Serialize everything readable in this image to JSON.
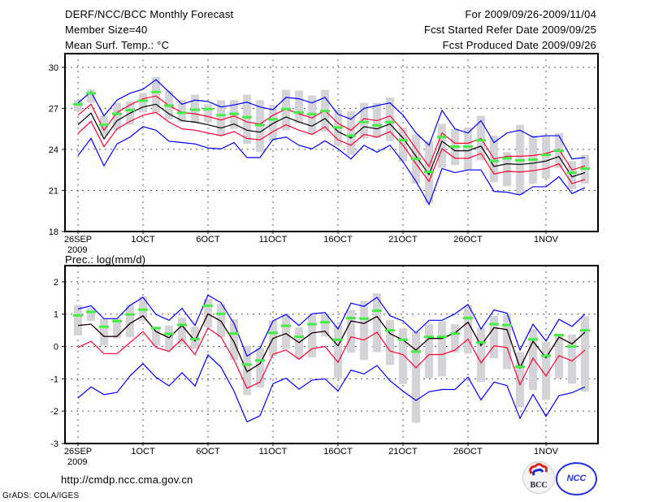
{
  "header": {
    "title": "DERF/NCC/BCC Monthly Forecast",
    "member_size": "Member Size=40",
    "variable": "Mean Surf. Temp.: °C",
    "period": "For 2009/09/26-2009/11/04",
    "started": "Fcst Started Refer Date 2009/09/25",
    "produced": "Fcst Produced Date 2009/09/26"
  },
  "footer": {
    "url": "http://cmdp.ncc.cma.gov.cn",
    "credit": "GrADS: COLA/IGES",
    "logos": [
      "BCC",
      "NCC"
    ]
  },
  "colors": {
    "mean": "#000000",
    "red": "#ff0030",
    "blue": "#0000ff",
    "green": "#44ee44",
    "bar": "#d4d4d8"
  },
  "chart_data": [
    {
      "type": "line",
      "title": "Mean Surf. Temp.: °C",
      "ylim": [
        18,
        31
      ],
      "yticks": [
        18,
        21,
        24,
        27,
        30
      ],
      "ytick_labels": [
        "18",
        "21",
        "24",
        "27",
        "30"
      ],
      "xtick_days": [
        0,
        5,
        10,
        15,
        20,
        25,
        30,
        36
      ],
      "xtick_labels": [
        "26SEP",
        "1OCT",
        "6OCT",
        "11OCT",
        "16OCT",
        "21OCT",
        "26OCT",
        "1NOV"
      ],
      "xtick_sub": "2009",
      "grid": true,
      "mean": [
        25.8,
        26.65,
        24.77,
        26.1,
        26.65,
        27.1,
        27.3,
        26.6,
        26.1,
        26.0,
        25.8,
        25.56,
        25.86,
        25.4,
        25.26,
        25.9,
        26.37,
        26.0,
        25.7,
        26.26,
        25.3,
        24.83,
        25.66,
        25.5,
        25.86,
        24.83,
        23.5,
        22.16,
        24.6,
        23.9,
        23.9,
        24.24,
        22.75,
        22.95,
        22.9,
        22.99,
        23.15,
        23.48,
        22.0,
        22.3
      ],
      "red_upper": [
        26.5,
        27.3,
        25.4,
        26.7,
        27.25,
        27.7,
        27.9,
        27.2,
        26.7,
        26.6,
        26.4,
        26.15,
        26.45,
        26.0,
        25.85,
        26.5,
        26.95,
        26.6,
        26.3,
        26.85,
        25.9,
        25.4,
        26.25,
        26.1,
        26.45,
        25.4,
        24.05,
        22.75,
        25.2,
        24.45,
        24.45,
        24.8,
        23.3,
        23.5,
        23.5,
        23.55,
        23.7,
        24.0,
        22.5,
        22.8
      ],
      "red_lower": [
        25.17,
        26.05,
        24.2,
        25.5,
        26.05,
        26.5,
        26.7,
        26.0,
        25.5,
        25.4,
        25.2,
        25.0,
        25.3,
        24.8,
        24.7,
        25.3,
        25.8,
        25.4,
        25.1,
        25.65,
        24.7,
        24.3,
        25.1,
        24.9,
        25.3,
        24.3,
        22.95,
        21.66,
        24.05,
        23.35,
        23.35,
        23.7,
        22.2,
        22.4,
        22.35,
        22.45,
        22.6,
        22.95,
        21.5,
        21.8
      ],
      "blue_upper": [
        27.4,
        28.2,
        26.45,
        27.6,
        28.1,
        28.4,
        29.1,
        28.2,
        27.3,
        27.6,
        27.5,
        27.1,
        27.25,
        27.45,
        27.1,
        26.9,
        27.8,
        27.7,
        27.4,
        27.8,
        26.57,
        26.2,
        27.0,
        27.2,
        27.4,
        26.5,
        25.2,
        24.3,
        26.85,
        25.5,
        25.2,
        26.1,
        24.5,
        25.2,
        25.4,
        24.9,
        25.0,
        25.0,
        23.3,
        23.4
      ],
      "blue_lower": [
        23.55,
        24.8,
        22.8,
        24.4,
        24.9,
        25.66,
        25.4,
        24.6,
        24.5,
        24.4,
        24.1,
        24.04,
        24.5,
        23.4,
        23.4,
        24.73,
        24.9,
        24.3,
        24.04,
        24.63,
        24.04,
        23.3,
        24.3,
        23.8,
        24.3,
        23.1,
        21.66,
        19.98,
        22.6,
        22.3,
        22.5,
        22.5,
        20.93,
        20.87,
        20.67,
        21.27,
        21.27,
        22.0,
        20.77,
        21.2
      ],
      "green": [
        27.3,
        28.1,
        25.8,
        26.6,
        26.87,
        27.56,
        28.2,
        27.2,
        26.67,
        26.9,
        26.95,
        26.5,
        26.6,
        26.35,
        25.78,
        26.2,
        26.95,
        26.7,
        26.57,
        26.8,
        25.6,
        25.0,
        26.0,
        25.76,
        26.0,
        24.67,
        23.3,
        22.35,
        24.9,
        24.2,
        24.2,
        24.67,
        23.15,
        23.35,
        23.2,
        23.25,
        23.6,
        23.9,
        22.3,
        22.6
      ],
      "bar_high": [
        27.6,
        28.4,
        26.45,
        27.4,
        27.5,
        28.1,
        29.3,
        28.3,
        27.6,
        28.0,
        27.3,
        27.6,
        27.6,
        28.0,
        27.6,
        27.25,
        28.35,
        28.3,
        27.94,
        28.35,
        26.9,
        26.8,
        27.4,
        27.4,
        27.8,
        25.6,
        25.07,
        24.6,
        25.86,
        25.5,
        25.6,
        26.45,
        25.0,
        23.8,
        25.8,
        25.0,
        25.0,
        25.2,
        23.15,
        23.6
      ],
      "bar_low": [
        26.8,
        27.4,
        25.0,
        25.4,
        25.8,
        26.7,
        26.7,
        26.2,
        26.0,
        25.9,
        26.0,
        25.0,
        25.5,
        24.4,
        23.8,
        24.6,
        25.4,
        25.9,
        25.07,
        25.3,
        24.3,
        23.6,
        24.8,
        24.83,
        24.6,
        23.1,
        21.5,
        20.1,
        22.65,
        22.85,
        22.5,
        23.2,
        21.6,
        21.3,
        20.67,
        21.5,
        21.86,
        22.65,
        21.1,
        21.5
      ]
    },
    {
      "type": "line",
      "title": "Prec.: log(mm/d)",
      "ylim": [
        -3,
        2.5
      ],
      "yticks": [
        -3,
        -2,
        -1,
        0,
        1,
        2
      ],
      "ytick_labels": [
        "-3",
        "-2",
        "-1",
        "0",
        "1",
        "2"
      ],
      "xtick_days": [
        0,
        5,
        10,
        15,
        20,
        25,
        30,
        36
      ],
      "xtick_labels": [
        "26SEP",
        "1OCT",
        "6OCT",
        "11OCT",
        "16OCT",
        "21OCT",
        "26OCT",
        "1NOV"
      ],
      "xtick_sub": "2009",
      "grid": true,
      "mean": [
        0.65,
        0.69,
        0.31,
        0.31,
        0.71,
        0.95,
        0.46,
        0.27,
        0.65,
        0.17,
        1.01,
        0.78,
        0.14,
        -0.78,
        -0.53,
        0.25,
        0.4,
        0.12,
        0.42,
        0.47,
        0.02,
        0.79,
        0.71,
        0.93,
        0.4,
        0.2,
        -0.11,
        0.25,
        0.25,
        0.42,
        0.75,
        0.03,
        0.58,
        0.52,
        -0.66,
        0.16,
        -0.35,
        0.29,
        0.08,
        0.44
      ],
      "red_upper": [
        0.65,
        0.69,
        0.31,
        0.31,
        0.71,
        0.95,
        0.46,
        0.27,
        0.65,
        0.17,
        1.01,
        0.78,
        0.14,
        -0.78,
        -0.53,
        0.25,
        0.4,
        0.12,
        0.42,
        0.47,
        0.02,
        0.79,
        0.71,
        0.93,
        0.4,
        0.2,
        -0.11,
        0.25,
        0.25,
        0.42,
        0.75,
        0.03,
        0.58,
        0.52,
        -0.66,
        0.16,
        -0.35,
        0.29,
        0.08,
        0.44
      ],
      "red_lower": [
        -0.03,
        0.16,
        -0.22,
        -0.22,
        0.12,
        0.46,
        -0.03,
        -0.15,
        0.23,
        -0.25,
        0.57,
        0.29,
        -0.41,
        -1.29,
        -1.1,
        -0.24,
        -0.11,
        -0.39,
        -0.07,
        0.0,
        -0.49,
        0.3,
        0.2,
        0.44,
        -0.14,
        -0.25,
        -0.66,
        -0.25,
        -0.25,
        -0.11,
        0.23,
        -0.51,
        0.02,
        -0.03,
        -1.18,
        -0.36,
        -0.91,
        -0.28,
        -0.45,
        -0.11
      ],
      "blue_upper": [
        1.16,
        1.26,
        0.86,
        0.86,
        1.27,
        1.52,
        0.99,
        0.81,
        1.18,
        0.65,
        1.59,
        1.35,
        0.71,
        -0.3,
        -0.05,
        0.79,
        0.99,
        0.65,
        1.01,
        1.05,
        0.54,
        1.34,
        1.24,
        1.52,
        0.95,
        0.79,
        0.42,
        0.81,
        0.81,
        1.01,
        1.3,
        0.54,
        1.13,
        1.03,
        -0.11,
        0.69,
        0.17,
        0.84,
        0.62,
        1.0
      ],
      "blue_lower": [
        -1.59,
        -1.25,
        -1.49,
        -1.42,
        -0.91,
        -0.53,
        -0.95,
        -1.22,
        -0.81,
        -1.22,
        -0.26,
        -0.64,
        -1.38,
        -2.33,
        -2.14,
        -1.15,
        -0.98,
        -1.32,
        -1.04,
        -1.0,
        -1.38,
        -0.73,
        -0.85,
        -0.59,
        -1.06,
        -1.38,
        -1.67,
        -1.4,
        -1.33,
        -1.33,
        -0.95,
        -1.65,
        -1.1,
        -1.21,
        -2.22,
        -1.48,
        -2.16,
        -1.52,
        -1.43,
        -1.25
      ],
      "green": [
        0.96,
        1.07,
        0.61,
        0.78,
        0.99,
        1.14,
        0.57,
        0.39,
        0.67,
        0.23,
        1.26,
        1.01,
        0.4,
        -0.56,
        -0.43,
        0.42,
        0.64,
        0.3,
        0.69,
        0.75,
        0.21,
        0.88,
        0.86,
        1.11,
        0.5,
        0.21,
        -0.16,
        0.3,
        0.3,
        0.4,
        0.88,
        0.12,
        0.69,
        0.66,
        -0.63,
        0.22,
        -0.29,
        0.35,
        0.0,
        0.5
      ],
      "bar_high": [
        1.28,
        1.2,
        0.86,
        0.86,
        1.3,
        1.55,
        0.54,
        0.65,
        0.89,
        0.61,
        1.47,
        1.32,
        0.84,
        0.02,
        -0.05,
        0.81,
        1.01,
        0.59,
        1.01,
        1.01,
        0.65,
        1.13,
        1.41,
        1.64,
        0.82,
        0.57,
        0.44,
        0.69,
        0.78,
        0.69,
        1.27,
        0.57,
        0.95,
        1.01,
        -0.17,
        0.54,
        0.14,
        0.4,
        0.37,
        0.93
      ],
      "bar_low": [
        0.34,
        0.79,
        0.03,
        0.25,
        0.29,
        0.78,
        0.02,
        -0.11,
        0.06,
        -0.07,
        0.59,
        0.29,
        -0.41,
        -1.5,
        -1.27,
        -0.3,
        -0.08,
        -0.39,
        -0.34,
        0.31,
        -1.0,
        -0.19,
        -0.42,
        -0.17,
        -0.57,
        -1.16,
        -2.36,
        -0.98,
        -0.93,
        -0.19,
        -0.22,
        -1.1,
        -0.36,
        -0.7,
        -1.88,
        -1.35,
        -1.65,
        -0.98,
        -1.15,
        -1.4
      ]
    }
  ]
}
